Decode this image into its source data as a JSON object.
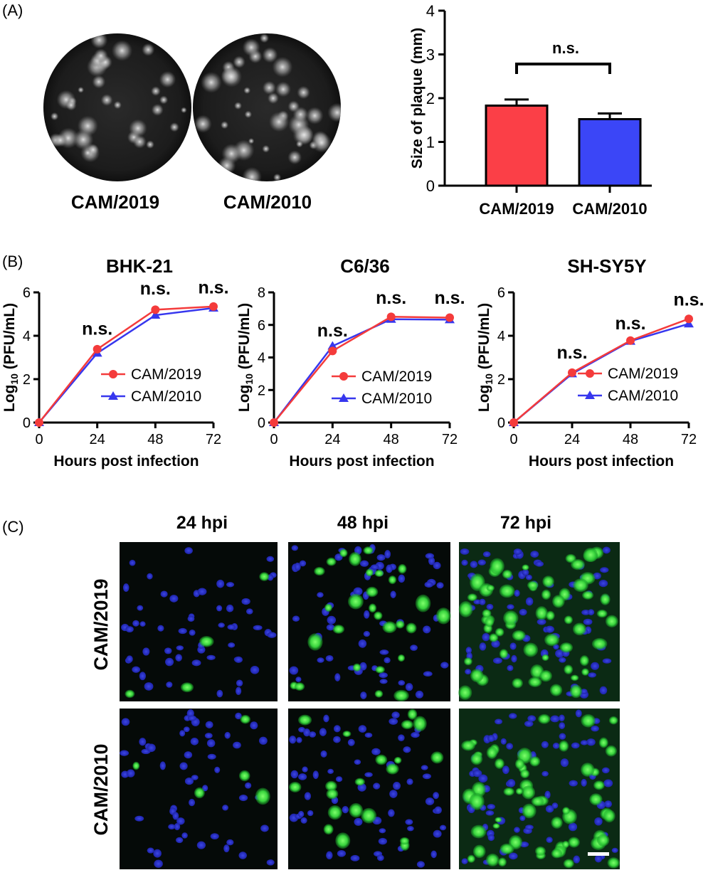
{
  "panels": {
    "a": {
      "letter": "(A)",
      "plaque_images": [
        {
          "label": "CAM/2019"
        },
        {
          "label": "CAM/2010"
        }
      ]
    },
    "b": {
      "letter": "(B)"
    },
    "c": {
      "letter": "(C)",
      "column_labels": [
        "24 hpi",
        "48 hpi",
        "72 hpi"
      ],
      "row_labels": [
        "CAM/2019",
        "CAM/2010"
      ]
    }
  },
  "chart_data": [
    {
      "type": "bar",
      "title": "",
      "xlabel": "",
      "ylabel": "Size of plaque (mm)",
      "categories": [
        "CAM/2019",
        "CAM/2010"
      ],
      "values": [
        1.83,
        1.52
      ],
      "errors": [
        0.14,
        0.13
      ],
      "colors": [
        "#fb3f47",
        "#3b46f7"
      ],
      "ylim": [
        0,
        4
      ],
      "yticks": [
        "0",
        "1",
        "2",
        "3",
        "4"
      ],
      "significance": {
        "label": "n.s.",
        "between": [
          0,
          1
        ]
      },
      "grid": false,
      "legend": "none"
    },
    {
      "type": "line",
      "title": "BHK-21",
      "xlabel": "Hours post infection",
      "ylabel_main": "Log",
      "ylabel_sub": "10",
      "ylabel_tail": " (PFU/mL)",
      "x": [
        0,
        24,
        48,
        72
      ],
      "xticks": [
        "0",
        "24",
        "48",
        "72"
      ],
      "ylim": [
        0,
        6
      ],
      "yticks": [
        "0",
        "2",
        "4",
        "6"
      ],
      "series": [
        {
          "name": "CAM/2019",
          "values": [
            0,
            3.38,
            5.2,
            5.35
          ],
          "color": "#f43b3b",
          "marker": "circle"
        },
        {
          "name": "CAM/2010",
          "values": [
            0,
            3.2,
            4.95,
            5.28
          ],
          "color": "#3737ee",
          "marker": "triangle"
        }
      ],
      "annotations": [
        "n.s.",
        "n.s.",
        "n.s."
      ],
      "annotation_y": [
        4.05,
        5.9,
        5.95
      ],
      "legend": "lower-right",
      "grid": false
    },
    {
      "type": "line",
      "title": "C6/36",
      "xlabel": "Hours post infection",
      "ylabel_main": "Log",
      "ylabel_sub": "10",
      "ylabel_tail": " (PFU/mL)",
      "x": [
        0,
        24,
        48,
        72
      ],
      "xticks": [
        "0",
        "24",
        "48",
        "72"
      ],
      "ylim": [
        0,
        8
      ],
      "yticks": [
        "0",
        "2",
        "4",
        "6",
        "8"
      ],
      "series": [
        {
          "name": "CAM/2019",
          "values": [
            0,
            4.4,
            6.5,
            6.45
          ],
          "color": "#f43b3b",
          "marker": "circle"
        },
        {
          "name": "CAM/2010",
          "values": [
            0,
            4.7,
            6.35,
            6.32
          ],
          "color": "#3737ee",
          "marker": "triangle"
        }
      ],
      "annotations": [
        "n.s.",
        "n.s.",
        "n.s."
      ],
      "annotation_y": [
        5.3,
        7.3,
        7.3
      ],
      "legend": "lower-right",
      "grid": false
    },
    {
      "type": "line",
      "title": "SH-SY5Y",
      "xlabel": "Hours post infection",
      "ylabel_main": "Log",
      "ylabel_sub": "10",
      "ylabel_tail": " (PFU/mL)",
      "x": [
        0,
        24,
        48,
        72
      ],
      "xticks": [
        "0",
        "24",
        "48",
        "72"
      ],
      "ylim": [
        0,
        6
      ],
      "yticks": [
        "0",
        "2",
        "4",
        "6"
      ],
      "series": [
        {
          "name": "CAM/2019",
          "values": [
            0,
            2.3,
            3.78,
            4.78
          ],
          "color": "#f43b3b",
          "marker": "circle"
        },
        {
          "name": "CAM/2010",
          "values": [
            0,
            2.25,
            3.75,
            4.55
          ],
          "color": "#3737ee",
          "marker": "triangle"
        }
      ],
      "annotations": [
        "n.s.",
        "n.s.",
        "n.s."
      ],
      "annotation_y": [
        2.95,
        4.3,
        5.4
      ],
      "legend": "lower-right",
      "grid": false
    }
  ]
}
